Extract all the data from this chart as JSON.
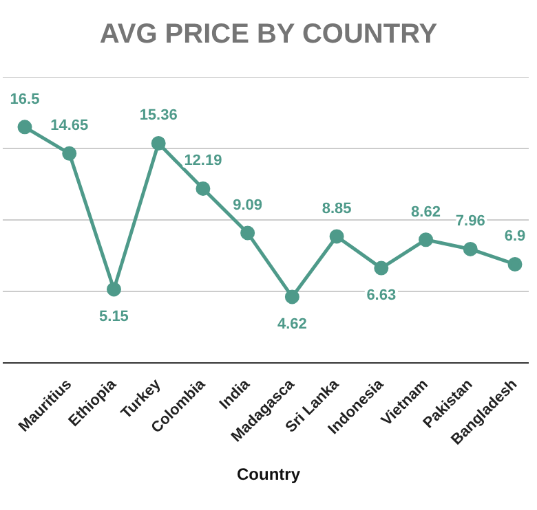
{
  "chart_data": {
    "type": "line",
    "title": "AVG PRICE BY COUNTRY",
    "xlabel": "Country",
    "categories": [
      null,
      "Mauritius",
      "Ethiopia",
      "Turkey",
      "Colombia",
      "India",
      "Madagasca",
      "Sri Lanka",
      "Indonesia",
      "Vietnam",
      "Pakistan",
      "Bangladesh"
    ],
    "series": [
      {
        "color": "#4e9a8a",
        "values": [
          16.5,
          14.65,
          5.15,
          15.36,
          12.19,
          9.09,
          4.62,
          8.85,
          6.63,
          8.62,
          7.96,
          6.9
        ]
      }
    ],
    "ylim": [
      0,
      20
    ],
    "yticks": [
      {
        "value": 0,
        "label": null
      },
      {
        "value": 5,
        "label": null
      },
      {
        "value": 10,
        "label": null
      },
      {
        "value": 15,
        "label": null
      },
      {
        "value": 20,
        "label": null
      }
    ],
    "tick_labels": "x",
    "grid": "y",
    "data_labels": true,
    "marker": "circle",
    "line_style": "solid",
    "legend": false
  }
}
